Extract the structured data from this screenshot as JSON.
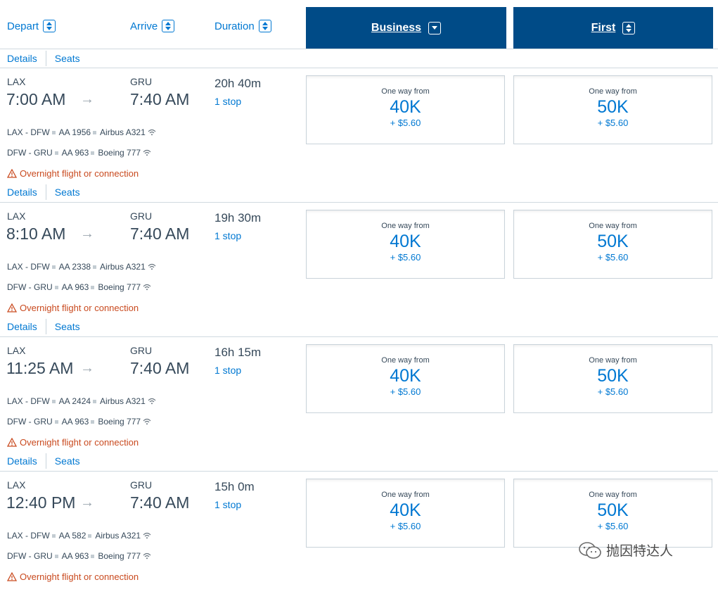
{
  "header": {
    "depart": "Depart",
    "arrive": "Arrive",
    "duration": "Duration",
    "business": "Business",
    "first": "First"
  },
  "links": {
    "details": "Details",
    "seats": "Seats"
  },
  "flights": [
    {
      "origin": "LAX",
      "depart_time": "7:00 AM",
      "dest": "GRU",
      "arrive_time": "7:40 AM",
      "duration": "20h 40m",
      "stops": "1 stop",
      "segments": [
        {
          "route": "LAX - DFW",
          "flight": "AA 1956",
          "aircraft": "Airbus A321"
        },
        {
          "route": "DFW - GRU",
          "flight": "AA 963",
          "aircraft": "Boeing 777"
        }
      ],
      "warning": "Overnight flight or connection",
      "business": {
        "label": "One way from",
        "miles": "40K",
        "tax": "+ $5.60"
      },
      "first": {
        "label": "One way from",
        "miles": "50K",
        "tax": "+ $5.60"
      }
    },
    {
      "origin": "LAX",
      "depart_time": "8:10 AM",
      "dest": "GRU",
      "arrive_time": "7:40 AM",
      "duration": "19h 30m",
      "stops": "1 stop",
      "segments": [
        {
          "route": "LAX - DFW",
          "flight": "AA 2338",
          "aircraft": "Airbus A321"
        },
        {
          "route": "DFW - GRU",
          "flight": "AA 963",
          "aircraft": "Boeing 777"
        }
      ],
      "warning": "Overnight flight or connection",
      "business": {
        "label": "One way from",
        "miles": "40K",
        "tax": "+ $5.60"
      },
      "first": {
        "label": "One way from",
        "miles": "50K",
        "tax": "+ $5.60"
      }
    },
    {
      "origin": "LAX",
      "depart_time": "11:25 AM",
      "dest": "GRU",
      "arrive_time": "7:40 AM",
      "duration": "16h 15m",
      "stops": "1 stop",
      "segments": [
        {
          "route": "LAX - DFW",
          "flight": "AA 2424",
          "aircraft": "Airbus A321"
        },
        {
          "route": "DFW - GRU",
          "flight": "AA 963",
          "aircraft": "Boeing 777"
        }
      ],
      "warning": "Overnight flight or connection",
      "business": {
        "label": "One way from",
        "miles": "40K",
        "tax": "+ $5.60"
      },
      "first": {
        "label": "One way from",
        "miles": "50K",
        "tax": "+ $5.60"
      }
    },
    {
      "origin": "LAX",
      "depart_time": "12:40 PM",
      "dest": "GRU",
      "arrive_time": "7:40 AM",
      "duration": "15h 0m",
      "stops": "1 stop",
      "segments": [
        {
          "route": "LAX - DFW",
          "flight": "AA 582",
          "aircraft": "Airbus A321"
        },
        {
          "route": "DFW - GRU",
          "flight": "AA 963",
          "aircraft": "Boeing 777"
        }
      ],
      "warning": "Overnight flight or connection",
      "business": {
        "label": "One way from",
        "miles": "40K",
        "tax": "+ $5.60"
      },
      "first": {
        "label": "One way from",
        "miles": "50K",
        "tax": "+ $5.60"
      }
    }
  ],
  "watermark": "抛因特达人",
  "colors": {
    "brand_navy": "#004b87",
    "link_blue": "#0078d2",
    "warning": "#c94a1f"
  },
  "icons": [
    "sort-icon",
    "sort-down-icon",
    "arrow-right-icon",
    "wifi-icon",
    "warning-icon",
    "wechat-icon"
  ]
}
